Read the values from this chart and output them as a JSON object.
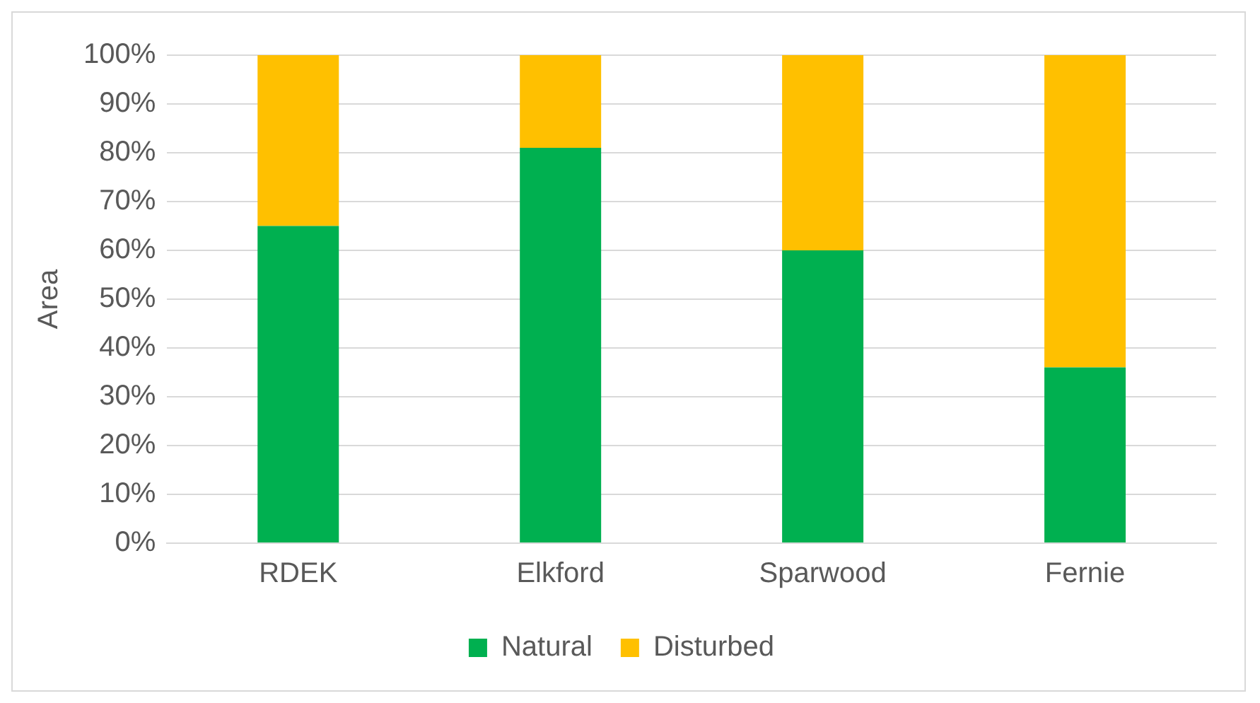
{
  "chart_data": {
    "type": "bar",
    "ylabel": "Area",
    "categories": [
      "RDEK",
      "Elkford",
      "Sparwood",
      "Fernie"
    ],
    "series": [
      {
        "name": "Natural",
        "color": "#00b050",
        "values": [
          65,
          81,
          60,
          36
        ]
      },
      {
        "name": "Disturbed",
        "color": "#ffc000",
        "values": [
          35,
          19,
          40,
          64
        ]
      }
    ],
    "stacked": true,
    "ylim": [
      0,
      100
    ],
    "yticks": [
      {
        "value": 0,
        "label": "0%"
      },
      {
        "value": 10,
        "label": "10%"
      },
      {
        "value": 20,
        "label": "20%"
      },
      {
        "value": 30,
        "label": "30%"
      },
      {
        "value": 40,
        "label": "40%"
      },
      {
        "value": 50,
        "label": "50%"
      },
      {
        "value": 60,
        "label": "60%"
      },
      {
        "value": 70,
        "label": "70%"
      },
      {
        "value": 80,
        "label": "80%"
      },
      {
        "value": 90,
        "label": "90%"
      },
      {
        "value": 100,
        "label": "100%"
      }
    ],
    "grid": "y",
    "legend": "bottom"
  }
}
